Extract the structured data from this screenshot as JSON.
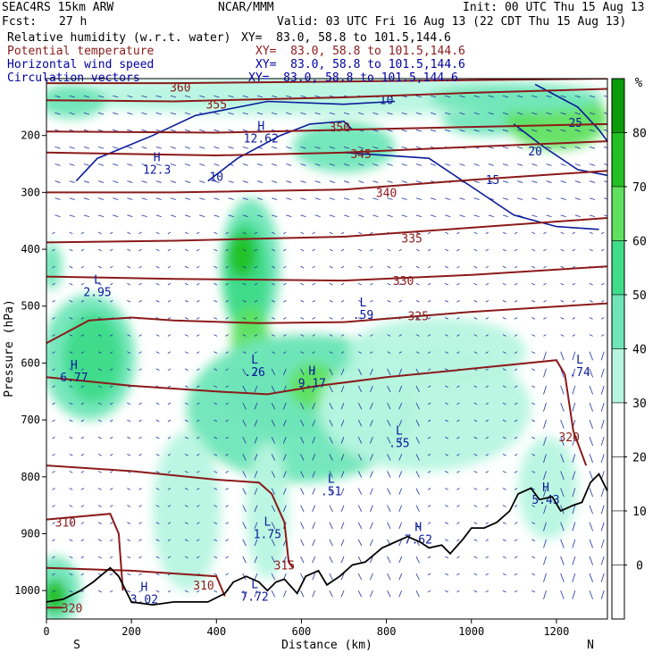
{
  "header": {
    "model": "SEAC4RS 15km ARW",
    "center": "NCAR/MMM",
    "init": "Init: 00 UTC Thu 15 Aug 13",
    "fcst_label": "Fcst:",
    "fcst_value": "27 h",
    "valid": "Valid: 03 UTC Fri 16 Aug 13 (22 CDT Thu 15 Aug 13)",
    "fields": [
      {
        "name": "Relative humidity (w.r.t. water)",
        "xy": "XY=  83.0, 58.8 to 101.5,144.6",
        "color": "#000000"
      },
      {
        "name": "Potential temperature",
        "xy": "XY=  83.0, 58.8 to 101.5,144.6",
        "color": "#8b1a1a"
      },
      {
        "name": "Horizontal wind speed",
        "xy": "XY=  83.0, 58.8 to 101.5,144.6",
        "color": "#0000a0"
      },
      {
        "name": "Circulation vectors",
        "xy": "XY=  83.0, 58.8 to 101.5,144.6",
        "color": "#0000a0"
      }
    ]
  },
  "chart_data": {
    "type": "heatmap",
    "xlabel": "Distance (km)",
    "ylabel": "Pressure (hPa)",
    "xlim": [
      0,
      1320
    ],
    "ylim": [
      1050,
      100
    ],
    "xticks": [
      0,
      200,
      400,
      600,
      800,
      1000,
      1200
    ],
    "yticks": [
      200,
      300,
      400,
      500,
      600,
      700,
      800,
      900,
      1000
    ],
    "x_ends": {
      "left": "S",
      "right": "N"
    },
    "colorbar": {
      "unit": "%",
      "levels": [
        0,
        10,
        20,
        30,
        40,
        50,
        60,
        70,
        80
      ],
      "colors": [
        "#ffffff",
        "#ffffff",
        "#ffffff",
        "#ffffff",
        "#b7f5e0",
        "#6fe6b8",
        "#3fdc8a",
        "#5fe05f",
        "#22c022",
        "#0a9a0a"
      ]
    },
    "rh_regions": [
      {
        "cx": 12,
        "cy": 430,
        "rx": 25,
        "ry": 40,
        "value": 40
      },
      {
        "cx": 100,
        "cy": 590,
        "rx": 110,
        "ry": 110,
        "value": 40
      },
      {
        "cx": 110,
        "cy": 590,
        "rx": 70,
        "ry": 80,
        "value": 55
      },
      {
        "cx": 480,
        "cy": 430,
        "rx": 70,
        "ry": 120,
        "value": 40
      },
      {
        "cx": 470,
        "cy": 450,
        "rx": 55,
        "ry": 100,
        "value": 55
      },
      {
        "cx": 460,
        "cy": 410,
        "rx": 35,
        "ry": 40,
        "value": 70
      },
      {
        "cx": 480,
        "cy": 560,
        "rx": 45,
        "ry": 60,
        "value": 60
      },
      {
        "cx": 600,
        "cy": 680,
        "rx": 270,
        "ry": 130,
        "value": 40
      },
      {
        "cx": 630,
        "cy": 640,
        "rx": 220,
        "ry": 90,
        "value": 45
      },
      {
        "cx": 630,
        "cy": 640,
        "rx": 60,
        "ry": 40,
        "value": 60
      },
      {
        "cx": 890,
        "cy": 680,
        "rx": 250,
        "ry": 110,
        "value": 30
      },
      {
        "cx": 920,
        "cy": 580,
        "rx": 210,
        "ry": 60,
        "value": 30
      },
      {
        "cx": 700,
        "cy": 220,
        "rx": 120,
        "ry": 45,
        "value": 40
      },
      {
        "cx": 1040,
        "cy": 170,
        "rx": 110,
        "ry": 30,
        "value": 40
      },
      {
        "cx": 1200,
        "cy": 170,
        "rx": 120,
        "ry": 55,
        "value": 60
      },
      {
        "cx": 660,
        "cy": 130,
        "rx": 660,
        "ry": 35,
        "value": 30
      },
      {
        "cx": 60,
        "cy": 140,
        "rx": 80,
        "ry": 30,
        "value": 40
      },
      {
        "cx": 1100,
        "cy": 135,
        "rx": 200,
        "ry": 25,
        "value": 45
      },
      {
        "cx": 20,
        "cy": 1000,
        "rx": 60,
        "ry": 60,
        "value": 45
      },
      {
        "cx": 20,
        "cy": 1010,
        "rx": 30,
        "ry": 30,
        "value": 70
      },
      {
        "cx": 330,
        "cy": 860,
        "rx": 80,
        "ry": 140,
        "value": 30
      },
      {
        "cx": 520,
        "cy": 860,
        "rx": 50,
        "ry": 120,
        "value": 30
      },
      {
        "cx": 1180,
        "cy": 820,
        "rx": 70,
        "ry": 90,
        "value": 30
      }
    ],
    "theta_contours": [
      {
        "label": "360",
        "points": [
          [
            0,
            108
          ],
          [
            300,
            108
          ],
          [
            700,
            105
          ],
          [
            1320,
            100
          ]
        ],
        "label_pos": [
          315,
          115
        ]
      },
      {
        "label": "355",
        "points": [
          [
            0,
            138
          ],
          [
            300,
            140
          ],
          [
            700,
            133
          ],
          [
            1000,
            125
          ],
          [
            1320,
            118
          ]
        ],
        "label_pos": [
          400,
          145
        ]
      },
      {
        "label": "350",
        "points": [
          [
            0,
            193
          ],
          [
            400,
            195
          ],
          [
            700,
            190
          ],
          [
            1000,
            185
          ],
          [
            1320,
            180
          ]
        ],
        "label_pos": [
          690,
          185
        ]
      },
      {
        "label": "345",
        "points": [
          [
            0,
            230
          ],
          [
            400,
            235
          ],
          [
            700,
            230
          ],
          [
            1000,
            220
          ],
          [
            1320,
            210
          ]
        ],
        "label_pos": [
          740,
          232
        ]
      },
      {
        "label": "340",
        "points": [
          [
            0,
            300
          ],
          [
            300,
            300
          ],
          [
            700,
            295
          ],
          [
            1000,
            278
          ],
          [
            1320,
            262
          ]
        ],
        "label_pos": [
          800,
          300
        ]
      },
      {
        "label": "335",
        "points": [
          [
            0,
            388
          ],
          [
            300,
            385
          ],
          [
            700,
            378
          ],
          [
            1000,
            362
          ],
          [
            1320,
            345
          ]
        ],
        "label_pos": [
          860,
          380
        ]
      },
      {
        "label": "330",
        "points": [
          [
            0,
            448
          ],
          [
            300,
            452
          ],
          [
            700,
            455
          ],
          [
            1000,
            445
          ],
          [
            1320,
            430
          ]
        ],
        "label_pos": [
          840,
          455
        ]
      },
      {
        "label": "325",
        "points": [
          [
            0,
            565
          ],
          [
            100,
            525
          ],
          [
            200,
            520
          ],
          [
            300,
            525
          ],
          [
            500,
            530
          ],
          [
            700,
            528
          ],
          [
            1000,
            510
          ],
          [
            1320,
            495
          ]
        ],
        "label_pos": [
          875,
          517
        ]
      },
      {
        "label": "320",
        "points": [
          [
            0,
            625
          ],
          [
            200,
            640
          ],
          [
            400,
            650
          ],
          [
            520,
            655
          ],
          [
            640,
            640
          ],
          [
            800,
            625
          ],
          [
            1000,
            610
          ],
          [
            1200,
            595
          ],
          [
            1220,
            620
          ],
          [
            1240,
            720
          ],
          [
            1270,
            780
          ]
        ],
        "label_pos": [
          1230,
          730
        ]
      },
      {
        "label": "315",
        "points": [
          [
            0,
            780
          ],
          [
            200,
            790
          ],
          [
            400,
            805
          ],
          [
            500,
            810
          ],
          [
            530,
            830
          ],
          [
            560,
            880
          ],
          [
            570,
            950
          ],
          [
            580,
            960
          ]
        ],
        "label_pos": [
          560,
          955
        ]
      },
      {
        "label": "310",
        "points": [
          [
            0,
            875
          ],
          [
            150,
            865
          ],
          [
            170,
            900
          ],
          [
            180,
            1000
          ]
        ],
        "label_pos": [
          45,
          880
        ]
      },
      {
        "label": "310",
        "points": [
          [
            0,
            960
          ],
          [
            200,
            965
          ],
          [
            400,
            975
          ],
          [
            420,
            1010
          ]
        ],
        "label_pos": [
          370,
          990
        ]
      },
      {
        "label": "320",
        "points": [
          [
            0,
            1030
          ],
          [
            40,
            1030
          ]
        ],
        "label_pos": [
          60,
          1030
        ]
      }
    ],
    "wind_contours": [
      {
        "label": "10",
        "points": [
          [
            70,
            280
          ],
          [
            120,
            240
          ],
          [
            250,
            200
          ],
          [
            350,
            165
          ],
          [
            520,
            140
          ],
          [
            700,
            145
          ],
          [
            820,
            140
          ]
        ],
        "label_pos": [
          800,
          145
        ]
      },
      {
        "label": "10",
        "points": [
          [
            380,
            280
          ],
          [
            450,
            240
          ],
          [
            550,
            200
          ],
          [
            620,
            180
          ],
          [
            700,
            175
          ],
          [
            720,
            190
          ]
        ],
        "label_pos": [
          400,
          280
        ]
      },
      {
        "label": "15",
        "points": [
          [
            700,
            230
          ],
          [
            900,
            240
          ],
          [
            1000,
            290
          ],
          [
            1100,
            340
          ],
          [
            1200,
            360
          ],
          [
            1300,
            365
          ]
        ],
        "label_pos": [
          1050,
          285
        ]
      },
      {
        "label": "20",
        "points": [
          [
            1100,
            180
          ],
          [
            1170,
            220
          ],
          [
            1250,
            260
          ],
          [
            1320,
            270
          ]
        ],
        "label_pos": [
          1150,
          235
        ]
      },
      {
        "label": "25",
        "points": [
          [
            1150,
            110
          ],
          [
            1250,
            150
          ],
          [
            1300,
            190
          ],
          [
            1320,
            210
          ]
        ],
        "label_pos": [
          1245,
          185
        ]
      }
    ],
    "extrema": [
      {
        "kind": "H",
        "value": "12.62",
        "x": 505,
        "y": 200
      },
      {
        "kind": "H",
        "value": "12.3",
        "x": 260,
        "y": 255
      },
      {
        "kind": "L",
        "value": "2.95",
        "x": 120,
        "y": 470
      },
      {
        "kind": "L",
        "value": ".59",
        "x": 745,
        "y": 510
      },
      {
        "kind": "H",
        "value": "6.77",
        "x": 65,
        "y": 620
      },
      {
        "kind": "L",
        "value": ".26",
        "x": 490,
        "y": 610
      },
      {
        "kind": "H",
        "value": "9.17",
        "x": 625,
        "y": 630
      },
      {
        "kind": "L",
        "value": ".74",
        "x": 1255,
        "y": 610
      },
      {
        "kind": "L",
        "value": ".55",
        "x": 830,
        "y": 735
      },
      {
        "kind": "L",
        "value": ".51",
        "x": 670,
        "y": 820
      },
      {
        "kind": "H",
        "value": "5.43",
        "x": 1175,
        "y": 835
      },
      {
        "kind": "L",
        "value": "1.75",
        "x": 520,
        "y": 895
      },
      {
        "kind": "H",
        "value": "7.62",
        "x": 875,
        "y": 905
      },
      {
        "kind": "H",
        "value": "3.02",
        "x": 230,
        "y": 1010
      },
      {
        "kind": "L",
        "value": "7.72",
        "x": 490,
        "y": 1005
      }
    ],
    "terrain": [
      [
        0,
        1020
      ],
      [
        40,
        1015
      ],
      [
        80,
        1000
      ],
      [
        110,
        985
      ],
      [
        150,
        960
      ],
      [
        170,
        975
      ],
      [
        200,
        1020
      ],
      [
        250,
        1025
      ],
      [
        300,
        1020
      ],
      [
        380,
        1020
      ],
      [
        420,
        1005
      ],
      [
        440,
        985
      ],
      [
        470,
        975
      ],
      [
        500,
        985
      ],
      [
        520,
        1000
      ],
      [
        540,
        985
      ],
      [
        560,
        980
      ],
      [
        590,
        1005
      ],
      [
        610,
        975
      ],
      [
        640,
        965
      ],
      [
        660,
        990
      ],
      [
        690,
        975
      ],
      [
        720,
        955
      ],
      [
        750,
        950
      ],
      [
        790,
        925
      ],
      [
        820,
        915
      ],
      [
        850,
        905
      ],
      [
        880,
        915
      ],
      [
        900,
        925
      ],
      [
        930,
        920
      ],
      [
        950,
        935
      ],
      [
        980,
        910
      ],
      [
        1000,
        890
      ],
      [
        1030,
        890
      ],
      [
        1060,
        880
      ],
      [
        1090,
        860
      ],
      [
        1110,
        830
      ],
      [
        1140,
        820
      ],
      [
        1160,
        840
      ],
      [
        1190,
        835
      ],
      [
        1210,
        860
      ],
      [
        1240,
        850
      ],
      [
        1260,
        845
      ],
      [
        1280,
        810
      ],
      [
        1300,
        795
      ],
      [
        1320,
        825
      ]
    ]
  }
}
